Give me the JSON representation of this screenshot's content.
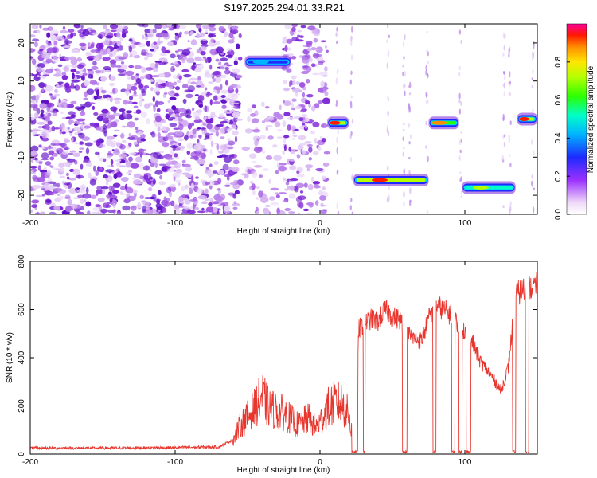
{
  "title": "S197.2025.294.01.33.R21",
  "chart_data": [
    {
      "type": "heatmap",
      "name": "spectrogram",
      "xlabel": "Height of straight line (km)",
      "ylabel": "Frequency (Hz)",
      "xlim": [
        -200,
        150
      ],
      "ylim": [
        -25,
        25
      ],
      "x_ticks": [
        -200,
        -100,
        0,
        100
      ],
      "y_ticks": [
        -20,
        -10,
        0,
        10,
        20
      ],
      "colorbar": {
        "label": "Normalized spectral amplitude",
        "range": [
          0.0,
          1.0
        ],
        "ticks": [
          "0.0",
          "0.2",
          "0.4",
          "0.6",
          "0.8"
        ]
      },
      "features": [
        {
          "x_start": -52,
          "x_end": -20,
          "freq": 15,
          "amplitude": 0.45
        },
        {
          "x_start": 5,
          "x_end": 20,
          "freq": -1,
          "amplitude": 1.0
        },
        {
          "x_start": 23,
          "x_end": 75,
          "freq": -16,
          "amplitude": 1.0
        },
        {
          "x_start": 75,
          "x_end": 96,
          "freq": -1,
          "amplitude": 0.95
        },
        {
          "x_start": 98,
          "x_end": 135,
          "freq": -18,
          "amplitude": 0.75
        },
        {
          "x_start": 136,
          "x_end": 150,
          "freq": 0,
          "amplitude": 1.0
        }
      ]
    },
    {
      "type": "line",
      "name": "snr",
      "xlabel": "Height of straight line (km)",
      "ylabel": "SNR (10 * v/v)",
      "xlim": [
        -200,
        150
      ],
      "ylim": [
        0,
        800
      ],
      "x_ticks": [
        -200,
        -100,
        0,
        100
      ],
      "y_ticks": [
        0,
        200,
        400,
        600,
        800
      ],
      "series": [
        {
          "name": "SNR",
          "color": "#e8362e",
          "x": [
            -200,
            -150,
            -100,
            -70,
            -60,
            -55,
            -45,
            -40,
            -35,
            -25,
            -15,
            -8,
            -3,
            0,
            5,
            10,
            15,
            20,
            23,
            25,
            27,
            30,
            35,
            40,
            45,
            50,
            55,
            60,
            65,
            70,
            75,
            80,
            85,
            90,
            95,
            100,
            105,
            110,
            115,
            120,
            125,
            130,
            135,
            140,
            145,
            150
          ],
          "values": [
            25,
            25,
            27,
            30,
            60,
            120,
            190,
            240,
            190,
            170,
            120,
            150,
            110,
            130,
            190,
            210,
            210,
            160,
            50,
            270,
            520,
            540,
            560,
            550,
            600,
            570,
            560,
            500,
            480,
            470,
            560,
            620,
            600,
            580,
            540,
            510,
            470,
            390,
            350,
            310,
            260,
            360,
            660,
            680,
            690,
            700
          ]
        }
      ]
    }
  ]
}
